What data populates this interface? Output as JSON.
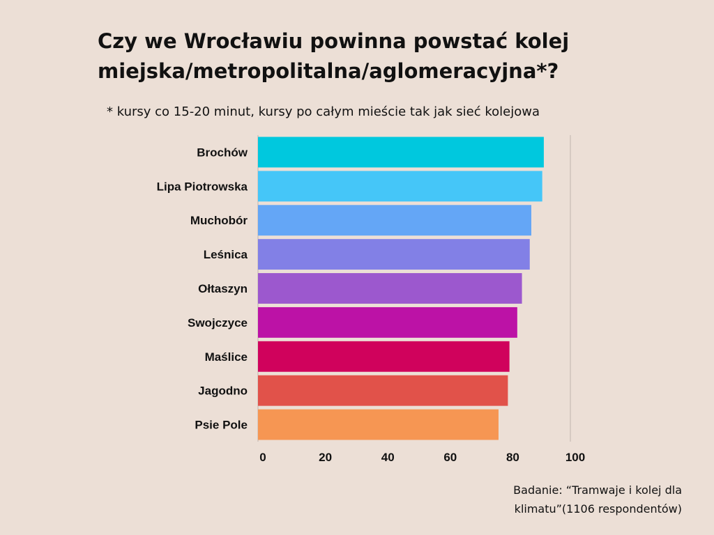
{
  "title": "Czy we Wrocławiu powinna powstać kolej miejska/metropolitalna/aglomeracyjna*?",
  "subtitle": "* kursy co 15-20 minut, kursy po całym mieście tak jak sieć kolejowa",
  "source": "Badanie: “Tramwaje i kolej dla klimatu”(1106 respondentów)",
  "chart_data": {
    "type": "bar",
    "orientation": "horizontal",
    "categories": [
      "Brochów",
      "Lipa Piotrowska",
      "Muchobór",
      "Leśnica",
      "Ołtaszyn",
      "Swojczyce",
      "Maślice",
      "Jagodno",
      "Psie Pole"
    ],
    "values": [
      91.5,
      91,
      87.5,
      87,
      84.5,
      83,
      80.5,
      80,
      77
    ],
    "colors": [
      "#00c8de",
      "#45c6f8",
      "#64a6f6",
      "#8280e6",
      "#9c58ce",
      "#bc12a6",
      "#d0025c",
      "#e1524a",
      "#f69653"
    ],
    "x_ticks": [
      0,
      20,
      40,
      60,
      80,
      100
    ],
    "xlim": [
      0,
      100
    ],
    "xlabel": "",
    "ylabel": "",
    "grid": "vertical line at 100",
    "legend": "none"
  }
}
